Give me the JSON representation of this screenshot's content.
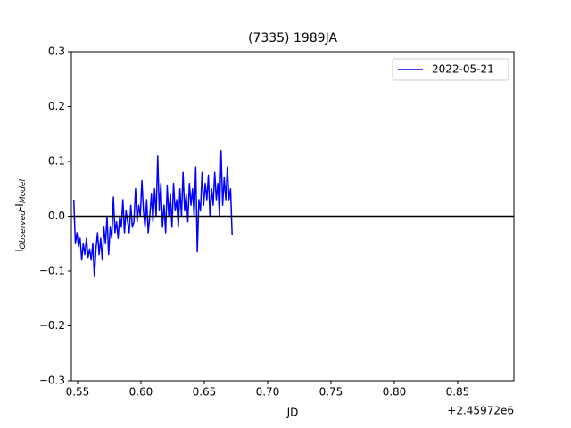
{
  "chart_data": {
    "type": "line",
    "title": "(7335) 1989JA",
    "xlabel": "JD",
    "x_offset_label": "+2.45972e6",
    "ylabel_parts": [
      "I",
      "Observed",
      "-I",
      "Model"
    ],
    "x": [
      0.547,
      0.54825,
      0.5495,
      0.55075,
      0.552,
      0.55325,
      0.5545,
      0.55575,
      0.557,
      0.55825,
      0.5595,
      0.56075,
      0.562,
      0.56325,
      0.5645,
      0.56575,
      0.567,
      0.56825,
      0.5695,
      0.57075,
      0.572,
      0.57325,
      0.5745,
      0.57575,
      0.577,
      0.57825,
      0.5795,
      0.58075,
      0.582,
      0.58325,
      0.5845,
      0.58575,
      0.587,
      0.58825,
      0.5895,
      0.59075,
      0.592,
      0.59325,
      0.5945,
      0.59575,
      0.597,
      0.59825,
      0.5995,
      0.60075,
      0.602,
      0.60325,
      0.6045,
      0.60575,
      0.607,
      0.60825,
      0.6095,
      0.61075,
      0.612,
      0.61325,
      0.6145,
      0.61575,
      0.617,
      0.61825,
      0.6195,
      0.62075,
      0.622,
      0.62325,
      0.6245,
      0.62575,
      0.627,
      0.62825,
      0.6295,
      0.63075,
      0.632,
      0.63325,
      0.6345,
      0.63575,
      0.637,
      0.63825,
      0.6395,
      0.64075,
      0.642,
      0.64325,
      0.6445,
      0.64575,
      0.647,
      0.64825,
      0.6495,
      0.65075,
      0.652,
      0.65325,
      0.6545,
      0.65575,
      0.657,
      0.65825,
      0.6595,
      0.66075,
      0.662,
      0.66325,
      0.6645,
      0.66575,
      0.667,
      0.66825,
      0.6695,
      0.67075,
      0.672
    ],
    "series": [
      {
        "name": "2022-05-21",
        "color": "#0000ff",
        "values": [
          0.03,
          -0.05,
          -0.03,
          -0.055,
          -0.04,
          -0.08,
          -0.05,
          -0.07,
          -0.04,
          -0.075,
          -0.06,
          -0.08,
          -0.05,
          -0.11,
          -0.06,
          -0.03,
          -0.07,
          -0.04,
          -0.08,
          -0.02,
          -0.05,
          0.0,
          -0.07,
          -0.02,
          -0.04,
          0.035,
          -0.03,
          -0.01,
          -0.04,
          0.0,
          -0.02,
          0.03,
          -0.03,
          0.01,
          -0.01,
          -0.03,
          0.02,
          -0.02,
          -0.01,
          0.05,
          -0.01,
          0.02,
          0.0,
          0.065,
          0.01,
          -0.02,
          0.03,
          -0.03,
          0.0,
          0.04,
          -0.01,
          0.05,
          0.0,
          0.11,
          0.01,
          0.06,
          -0.02,
          0.02,
          -0.03,
          0.055,
          0.0,
          0.04,
          -0.02,
          0.06,
          0.01,
          0.03,
          -0.02,
          0.05,
          0.0,
          0.08,
          0.01,
          0.04,
          -0.01,
          0.06,
          0.02,
          0.05,
          0.0,
          0.09,
          -0.065,
          0.03,
          0.01,
          0.08,
          0.02,
          0.06,
          0.03,
          0.075,
          0.0,
          0.05,
          0.02,
          0.08,
          0.03,
          0.06,
          0.0,
          0.12,
          0.02,
          0.07,
          0.03,
          0.09,
          0.03,
          0.05,
          -0.035
        ]
      }
    ],
    "hline": 0,
    "hline_color": "#000000",
    "xlim": [
      0.5451,
      0.8944
    ],
    "ylim": [
      -0.3,
      0.3
    ],
    "xticks": [
      0.55,
      {
        "value": 0.6,
        "label": "0.60"
      },
      0.65,
      {
        "value": 0.7,
        "label": "0.70"
      },
      0.75,
      {
        "value": 0.8,
        "label": "0.80"
      },
      0.85
    ],
    "yticks": [
      {
        "value": -0.3,
        "label": "−0.3"
      },
      {
        "value": -0.2,
        "label": "−0.2"
      },
      {
        "value": -0.1,
        "label": "−0.1"
      },
      {
        "value": 0,
        "label": "0.0"
      },
      0.1,
      0.2,
      0.3
    ],
    "legend": "upper right"
  }
}
